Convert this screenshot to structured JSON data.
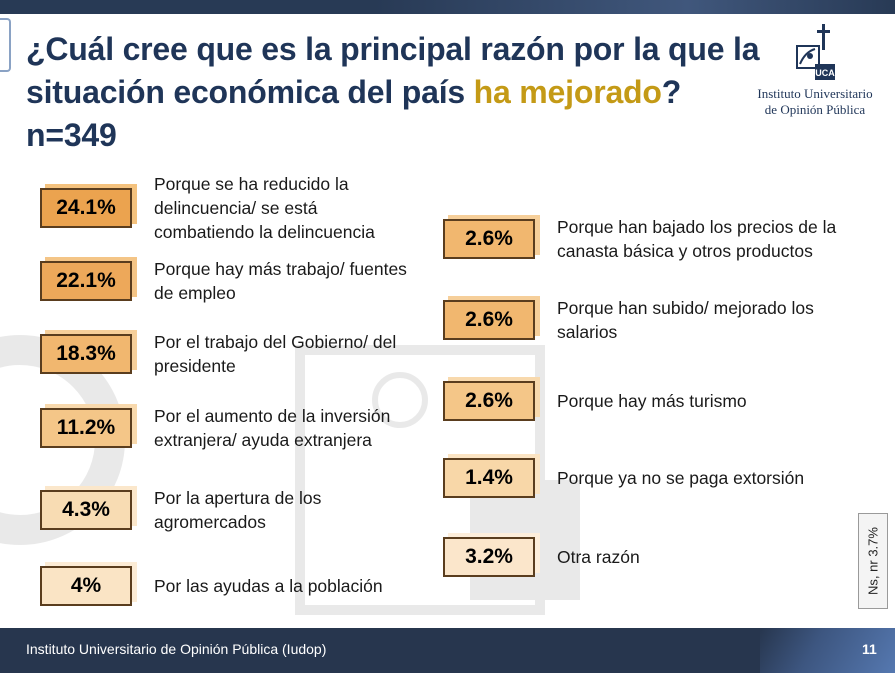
{
  "title": {
    "before": "¿Cuál cree que es la principal razón por la que la situación económica del país ",
    "highlight": "ha mejorado",
    "after": "?",
    "sample": "n=349"
  },
  "logo": {
    "line1": "Instituto Universitario",
    "line2": "de Opinión Pública",
    "mark": "UCA"
  },
  "left_items": [
    {
      "value": "24.1%",
      "label": "Porque se ha reducido la delincuencia/ se está combatiendo la delincuencia",
      "fill": "#eba34f",
      "shadow": "#f4c27e"
    },
    {
      "value": "22.1%",
      "label": "Porque hay más trabajo/ fuentes de empleo",
      "fill": "#eda85a",
      "shadow": "#f4c587"
    },
    {
      "value": "18.3%",
      "label": "Por el trabajo del Gobierno/ del presidente",
      "fill": "#f1b76f",
      "shadow": "#f6cf9a"
    },
    {
      "value": "11.2%",
      "label": "Por el aumento de la inversión extranjera/ ayuda extranjera",
      "fill": "#f4c688",
      "shadow": "#f8d9ad"
    },
    {
      "value": "4.3%",
      "label": "Por la apertura de los agromercados",
      "fill": "#f8dcb3",
      "shadow": "#fbe7cb"
    },
    {
      "value": "4%",
      "label": "Por las ayudas a la población",
      "fill": "#fae4c5",
      "shadow": "#fcecd6"
    }
  ],
  "right_items": [
    {
      "value": "2.6%",
      "label": "Porque han bajado los precios de la canasta básica y otros productos",
      "fill": "#f1b76f",
      "shadow": "#f6cf9a"
    },
    {
      "value": "2.6%",
      "label": "Porque han subido/ mejorado los salarios",
      "fill": "#f1b76f",
      "shadow": "#f6cf9a"
    },
    {
      "value": "2.6%",
      "label": "Porque hay más turismo",
      "fill": "#f4c688",
      "shadow": "#f8d9ad"
    },
    {
      "value": "1.4%",
      "label": "Porque ya no se paga extorsión",
      "fill": "#f8d7a8",
      "shadow": "#fbe4c3"
    },
    {
      "value": "3.2%",
      "label": "Otra razón",
      "fill": "#fbe6cb",
      "shadow": "#fdeedb"
    }
  ],
  "nsnr": "Ns, nr   3.7%",
  "footer": {
    "text": "Instituto Universitario de Opinión Pública (Iudop)",
    "page": "11"
  }
}
